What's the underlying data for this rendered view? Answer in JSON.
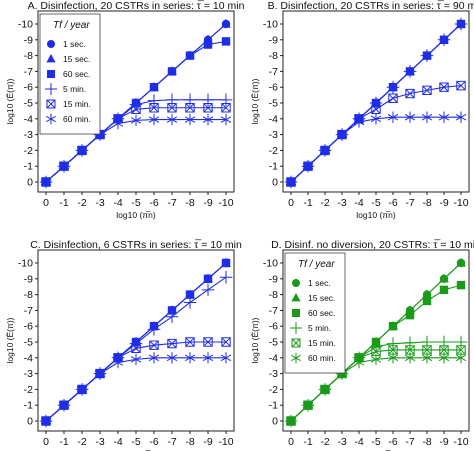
{
  "figure": {
    "x_ticks": [
      "0",
      "-1",
      "-2",
      "-3",
      "-4",
      "-5",
      "-6",
      "-7",
      "-8",
      "-9",
      "-10"
    ],
    "y_ticks": [
      "0",
      "-1",
      "-2",
      "-3",
      "-4",
      "-5",
      "-6",
      "-7",
      "-8",
      "-9",
      "-10"
    ]
  },
  "chart_data": [
    {
      "type": "line",
      "title": "A. Disinfection, 20 CSTRs in series: τ̅ = 10 min",
      "xlabel": "log10 (π̅n)",
      "ylabel": "log10 (Ē(π))",
      "xlim": [
        0,
        -10
      ],
      "ylim": [
        0,
        -10
      ],
      "color": "#1f2ee6",
      "legend": {
        "title": "Tf / year",
        "placement": "top-left"
      },
      "x": [
        0,
        -1,
        -2,
        -3,
        -4,
        -5,
        -6,
        -7,
        -8,
        -9,
        -10
      ],
      "series": [
        {
          "name": "1 sec.",
          "marker": "circle",
          "values": [
            0,
            -1,
            -2,
            -3,
            -4,
            -5,
            -6,
            -7,
            -8,
            -9,
            -10
          ]
        },
        {
          "name": "15 sec.",
          "marker": "triangle",
          "values": [
            0,
            -1,
            -2,
            -3,
            -4,
            -5,
            -6,
            -7,
            -8,
            -9,
            -10
          ]
        },
        {
          "name": "60 sec.",
          "marker": "square",
          "values": [
            0,
            -1,
            -2,
            -3,
            -4,
            -5,
            -6,
            -7,
            -8,
            -8.7,
            -8.9
          ]
        },
        {
          "name": "5 min.",
          "marker": "plus",
          "values": [
            0,
            -1,
            -2,
            -3,
            -4,
            -4.9,
            -5.15,
            -5.2,
            -5.2,
            -5.2,
            -5.2
          ]
        },
        {
          "name": "15 min.",
          "marker": "xbox",
          "values": [
            0,
            -1,
            -2,
            -3,
            -4,
            -4.6,
            -4.7,
            -4.7,
            -4.7,
            -4.7,
            -4.7
          ]
        },
        {
          "name": "60 min.",
          "marker": "asterisk",
          "values": [
            0,
            -1,
            -2,
            -3,
            -3.7,
            -3.9,
            -3.95,
            -3.95,
            -3.95,
            -3.95,
            -3.95
          ]
        }
      ]
    },
    {
      "type": "line",
      "title": "B. Disinfection, 20 CSTRs in series: τ̅ = 90 min",
      "xlabel": "log10 (π̅n)",
      "ylabel": "log10 (Ē(π))",
      "xlim": [
        0,
        -10
      ],
      "ylim": [
        0,
        -10
      ],
      "color": "#1f2ee6",
      "x": [
        0,
        -1,
        -2,
        -3,
        -4,
        -5,
        -6,
        -7,
        -8,
        -9,
        -10
      ],
      "series": [
        {
          "marker": "circle",
          "values": [
            0,
            -1,
            -2,
            -3,
            -4,
            -5,
            -6,
            -7,
            -8,
            -9,
            -10
          ]
        },
        {
          "marker": "triangle",
          "values": [
            0,
            -1,
            -2,
            -3,
            -4,
            -5,
            -6,
            -7,
            -8,
            -9,
            -10
          ]
        },
        {
          "marker": "square",
          "values": [
            0,
            -1,
            -2,
            -3,
            -4,
            -5,
            -6,
            -7,
            -8,
            -9,
            -10
          ]
        },
        {
          "marker": "plus",
          "values": [
            0,
            -1,
            -2,
            -3,
            -4,
            -5,
            -6,
            -7,
            -8,
            -9,
            -10
          ]
        },
        {
          "marker": "xbox",
          "values": [
            0,
            -1,
            -2,
            -3,
            -4,
            -4.6,
            -5.3,
            -5.6,
            -5.8,
            -6.0,
            -6.1
          ]
        },
        {
          "marker": "asterisk",
          "values": [
            0,
            -1,
            -2,
            -3,
            -3.8,
            -4.0,
            -4.1,
            -4.1,
            -4.1,
            -4.1,
            -4.1
          ]
        }
      ]
    },
    {
      "type": "line",
      "title": "C. Disinfection, 6 CSTRs in series: τ̅ = 10 min",
      "xlabel": "log10 (π̅n)",
      "ylabel": "log10 (Ē(π))",
      "xlim": [
        0,
        -10
      ],
      "ylim": [
        0,
        -10
      ],
      "color": "#1f2ee6",
      "x": [
        0,
        -1,
        -2,
        -3,
        -4,
        -5,
        -6,
        -7,
        -8,
        -9,
        -10
      ],
      "series": [
        {
          "marker": "circle",
          "values": [
            0,
            -1,
            -2,
            -3,
            -4,
            -5,
            -6,
            -7,
            -8,
            -9,
            -10
          ]
        },
        {
          "marker": "triangle",
          "values": [
            0,
            -1,
            -2,
            -3,
            -4,
            -5,
            -6,
            -7,
            -8,
            -9,
            -10
          ]
        },
        {
          "marker": "square",
          "values": [
            0,
            -1,
            -2,
            -3,
            -4,
            -5,
            -6,
            -7,
            -8,
            -9,
            -10
          ]
        },
        {
          "marker": "plus",
          "values": [
            0,
            -1,
            -2,
            -3,
            -4,
            -4.9,
            -5.8,
            -6.6,
            -7.5,
            -8.3,
            -9.1
          ]
        },
        {
          "marker": "xbox",
          "values": [
            0,
            -1,
            -2,
            -3,
            -4,
            -4.6,
            -4.8,
            -4.9,
            -5.0,
            -5.0,
            -5.0
          ]
        },
        {
          "marker": "asterisk",
          "values": [
            0,
            -1,
            -2,
            -3,
            -3.7,
            -3.9,
            -4.0,
            -4.0,
            -4.0,
            -4.0,
            -4.0
          ]
        }
      ]
    },
    {
      "type": "line",
      "title": "D. Disinf. no diversion, 20 CSTRs: τ̅ = 10 min",
      "xlabel": "log10 (π̅n)",
      "ylabel": "log10 (Ē(π))",
      "xlim": [
        0,
        -10
      ],
      "ylim": [
        0,
        -10
      ],
      "color": "#1a9a1a",
      "legend": {
        "title": "Tf / year",
        "placement": "top-left"
      },
      "x": [
        0,
        -1,
        -2,
        -3,
        -4,
        -5,
        -6,
        -7,
        -8,
        -9,
        -10
      ],
      "series": [
        {
          "name": "1 sec.",
          "marker": "circle",
          "values": [
            0,
            -1,
            -2,
            -3,
            -4,
            -5,
            -6,
            -7,
            -8,
            -9,
            -10
          ]
        },
        {
          "name": "15 sec.",
          "marker": "triangle",
          "values": [
            0,
            -1,
            -2,
            -3,
            -4,
            -5,
            -6,
            -7,
            -8,
            -9,
            -10
          ]
        },
        {
          "name": "60 sec.",
          "marker": "square",
          "values": [
            0,
            -1,
            -2,
            -3,
            -4,
            -5,
            -6,
            -6.7,
            -7.6,
            -8.3,
            -8.6
          ]
        },
        {
          "name": "5 min.",
          "marker": "plus",
          "values": [
            0,
            -1,
            -2,
            -3,
            -4,
            -4.7,
            -4.9,
            -4.95,
            -5.0,
            -5.0,
            -5.0
          ]
        },
        {
          "name": "15 min.",
          "marker": "xbox",
          "values": [
            0,
            -1,
            -2,
            -3,
            -4,
            -4.4,
            -4.5,
            -4.5,
            -4.5,
            -4.5,
            -4.5
          ]
        },
        {
          "name": "60 min.",
          "marker": "asterisk",
          "values": [
            0,
            -1,
            -2,
            -3,
            -3.7,
            -3.9,
            -4.0,
            -4.0,
            -4.0,
            -4.0,
            -4.0
          ]
        }
      ]
    }
  ]
}
